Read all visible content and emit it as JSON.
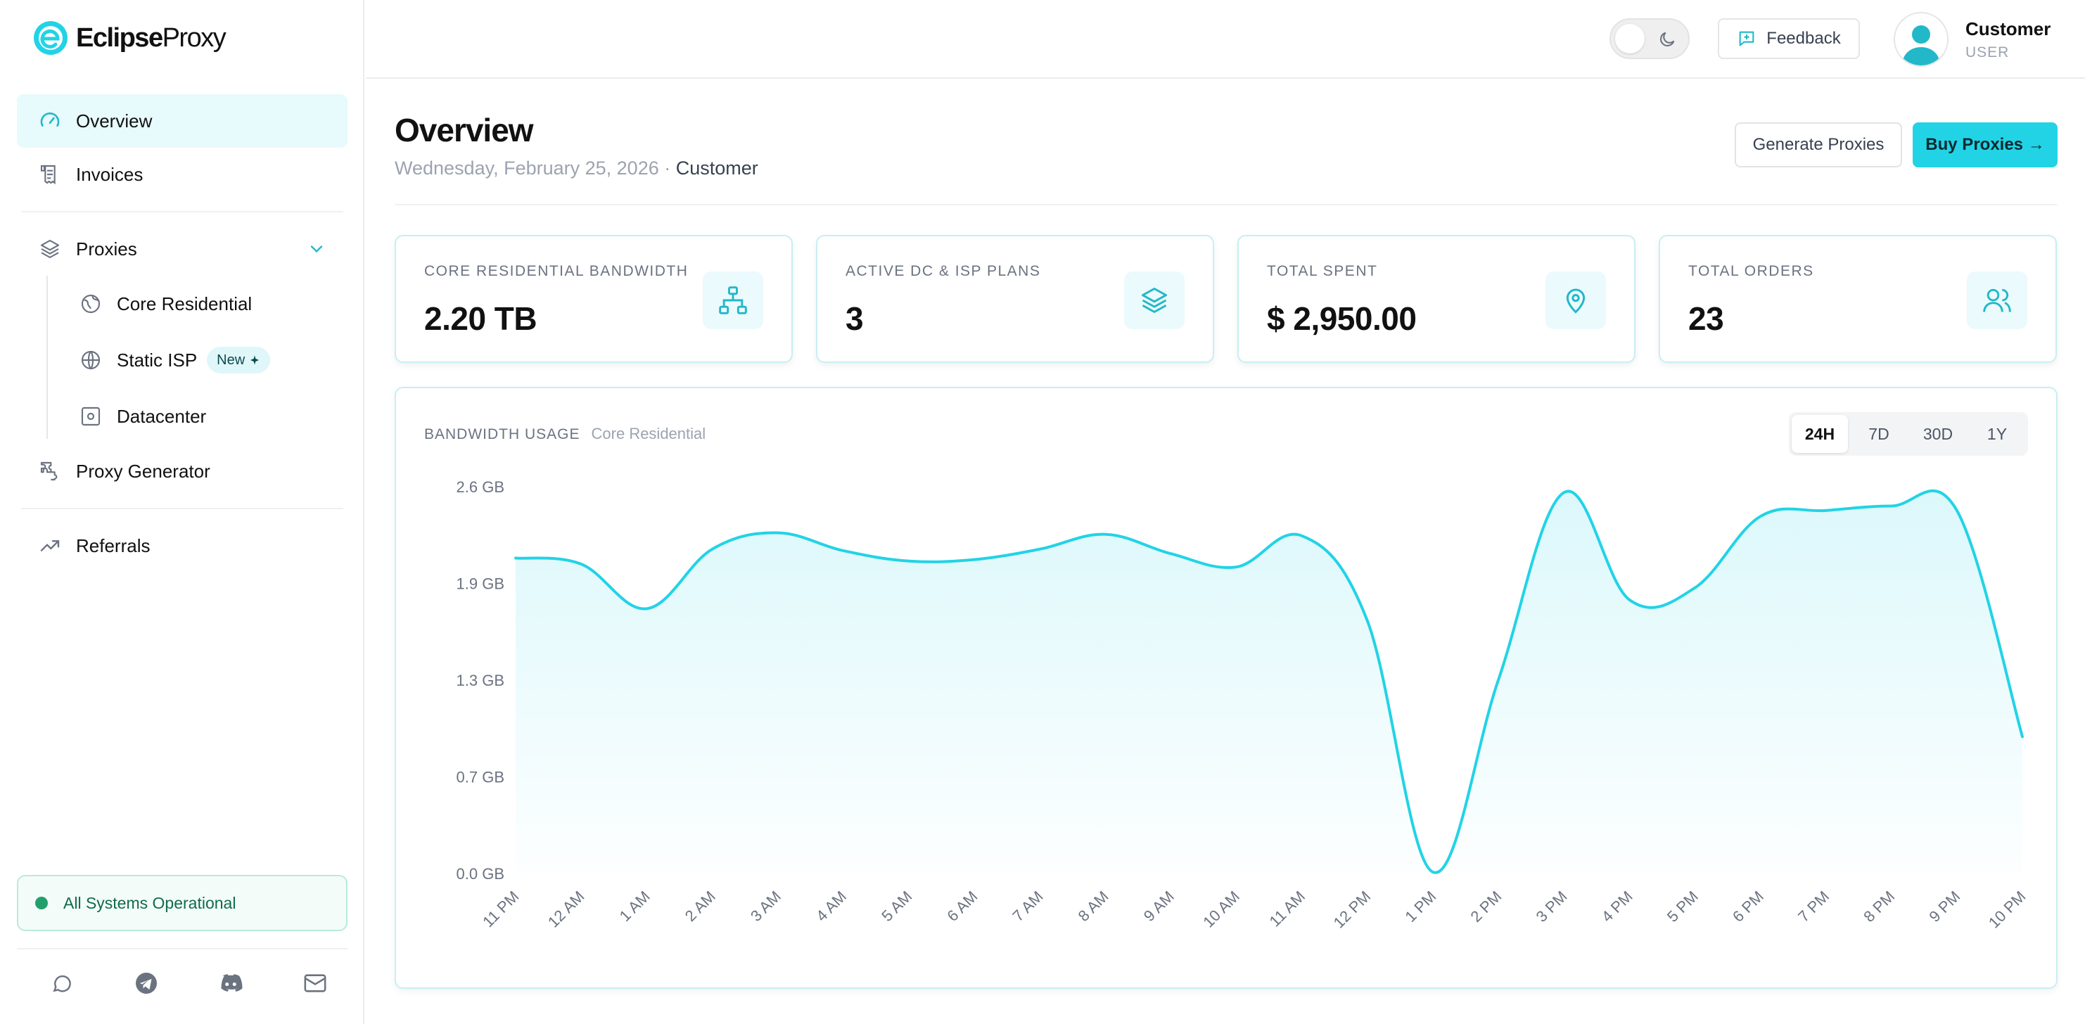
{
  "brand": {
    "name_bold": "Eclipse",
    "name_thin": "Proxy"
  },
  "sidebar": {
    "items": [
      {
        "label": "Overview",
        "icon": "gauge-icon",
        "active": true
      },
      {
        "label": "Invoices",
        "icon": "receipt-icon"
      },
      {
        "label": "Proxies",
        "icon": "layers-icon",
        "expanded": true
      },
      {
        "label": "Core Residential",
        "icon": "globe-outline-icon"
      },
      {
        "label": "Static ISP",
        "icon": "globe-icon",
        "badge": "New"
      },
      {
        "label": "Datacenter",
        "icon": "server-icon"
      },
      {
        "label": "Proxy Generator",
        "icon": "puzzle-icon"
      },
      {
        "label": "Referrals",
        "icon": "trending-icon"
      }
    ],
    "status": "All Systems Operational",
    "socials": [
      "chat-icon",
      "telegram-icon",
      "discord-icon",
      "mail-icon"
    ]
  },
  "topbar": {
    "feedback_label": "Feedback",
    "user_name": "Customer",
    "user_role": "USER"
  },
  "main": {
    "title": "Overview",
    "date": "Wednesday, February 25, 2026 · ",
    "customer": "Customer",
    "generate_label": "Generate Proxies",
    "buy_label": "Buy Proxies →"
  },
  "cards": [
    {
      "label": "Core Residential Bandwidth",
      "value": "2.20 TB",
      "icon": "network-icon"
    },
    {
      "label": "Active DC & ISP Plans",
      "value": "3",
      "icon": "layers-icon"
    },
    {
      "label": "Total Spent",
      "value": "$ 2,950.00",
      "icon": "map-pin-icon"
    },
    {
      "label": "Total Orders",
      "value": "23",
      "icon": "users-icon"
    }
  ],
  "chart": {
    "title": "Bandwidth Usage",
    "subtitle": "Core Residential",
    "ranges": [
      "24H",
      "7D",
      "30D",
      "1Y"
    ],
    "active_range": "24H"
  },
  "chart_data": {
    "type": "area",
    "x": [
      "11 PM",
      "12 AM",
      "1 AM",
      "2 AM",
      "3 AM",
      "4 AM",
      "5 AM",
      "6 AM",
      "7 AM",
      "8 AM",
      "9 AM",
      "10 AM",
      "11 AM",
      "12 PM",
      "1 PM",
      "2 PM",
      "3 PM",
      "4 PM",
      "5 PM",
      "6 PM",
      "7 PM",
      "8 PM",
      "9 PM",
      "10 PM"
    ],
    "series": [
      {
        "values": [
          2.12,
          2.08,
          1.78,
          2.18,
          2.29,
          2.17,
          2.1,
          2.11,
          2.18,
          2.28,
          2.15,
          2.06,
          2.27,
          1.7,
          0.01,
          1.3,
          2.56,
          1.84,
          1.92,
          2.4,
          2.44,
          2.47,
          2.44,
          0.92
        ]
      }
    ],
    "y_ticks": [
      "0.0 GB",
      "0.7 GB",
      "1.3 GB",
      "1.9 GB",
      "2.6 GB"
    ],
    "ylim": [
      0,
      2.6
    ],
    "grid": false,
    "color": "#22d3e6"
  }
}
